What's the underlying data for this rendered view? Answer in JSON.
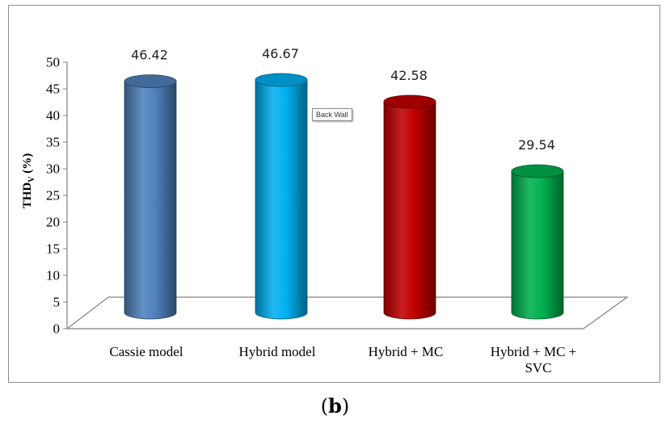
{
  "chart_data": {
    "type": "bar",
    "style": "3d-cylinder",
    "categories": [
      "Cassie model",
      "Hybrid model",
      "Hybrid + MC",
      "Hybrid + MC + SVC"
    ],
    "category_lines": [
      [
        "Cassie model"
      ],
      [
        "Hybrid model"
      ],
      [
        "Hybrid + MC"
      ],
      [
        "Hybrid + MC +",
        "SVC"
      ]
    ],
    "values": [
      46.42,
      46.67,
      42.58,
      29.54
    ],
    "data_labels": [
      "46.42",
      "46.67",
      "42.58",
      "29.54"
    ],
    "colors": [
      "#4f81bd",
      "#00b0f0",
      "#c00000",
      "#00b050"
    ],
    "ylabel_main": "THD",
    "ylabel_sub": "V",
    "ylabel_unit": " (%)",
    "ylim": [
      0,
      50
    ],
    "yticks": [
      "0",
      "5",
      "10",
      "15",
      "20",
      "25",
      "30",
      "35",
      "40",
      "45",
      "50"
    ],
    "grid": false,
    "legend": "none"
  },
  "tooltip": "Back Wall",
  "caption": {
    "open": "(",
    "letter": "b",
    "close": ")"
  }
}
